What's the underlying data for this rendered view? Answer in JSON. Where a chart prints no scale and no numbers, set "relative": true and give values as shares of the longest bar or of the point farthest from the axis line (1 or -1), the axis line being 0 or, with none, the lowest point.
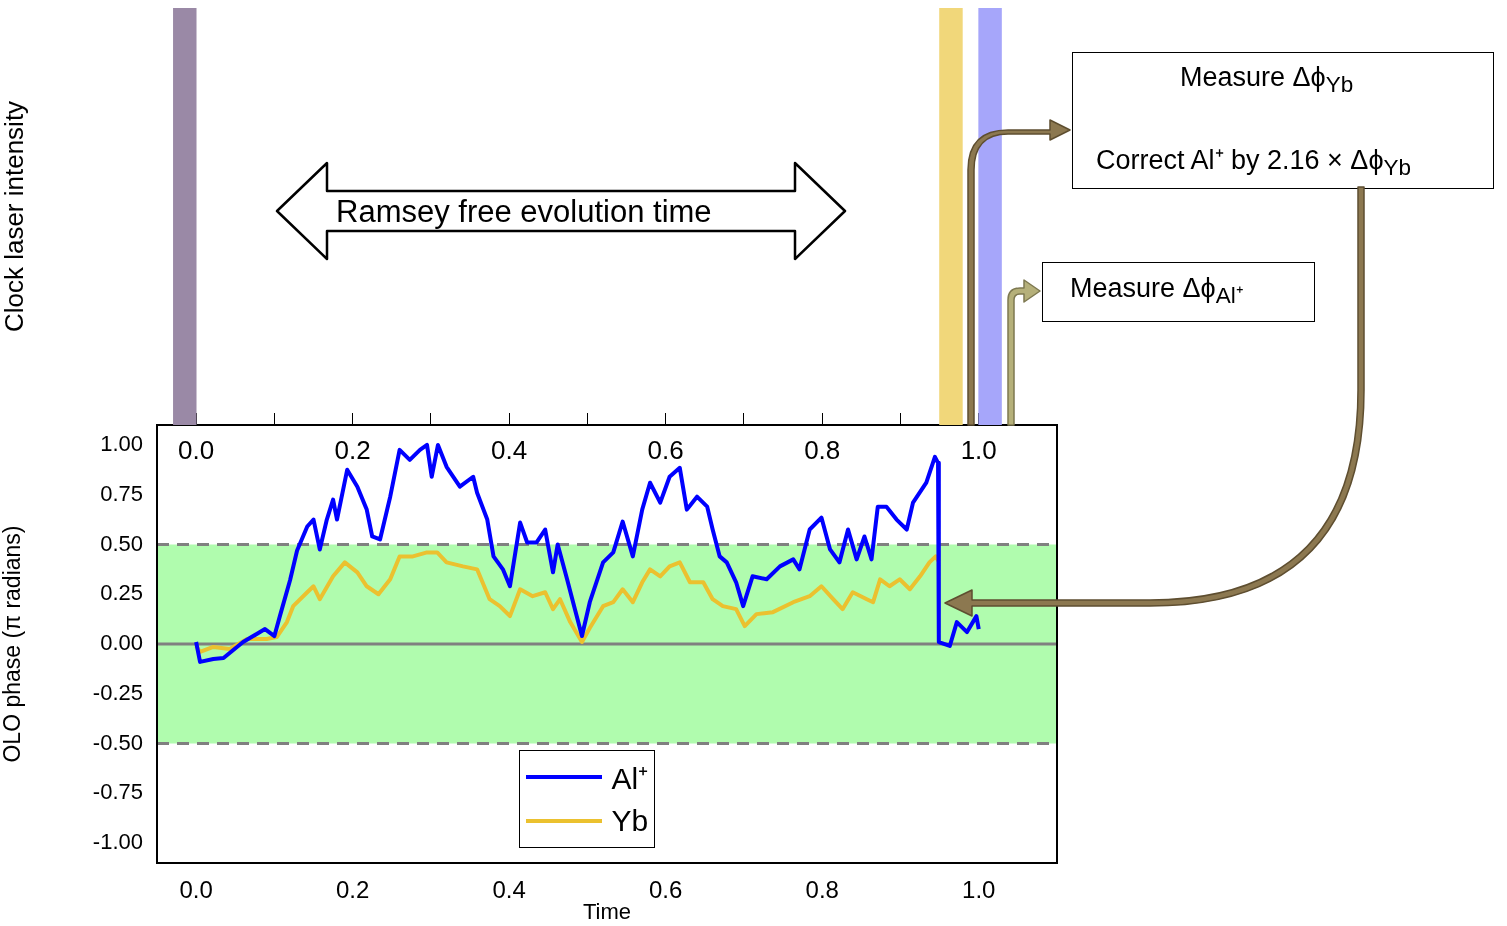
{
  "chart_data": [
    {
      "type": "bar",
      "relative": true,
      "ylabel": "Clock laser intensity",
      "tick_labels": false,
      "x": [
        -0.0145,
        0.9645,
        1.0145
      ],
      "values": [
        1,
        1,
        1
      ],
      "colors": [
        "#9a89a6",
        "#f1d77a",
        "#a6a6fa"
      ],
      "xlim": [
        -0.05,
        1.1
      ],
      "grid": false,
      "legend": false,
      "annotations": [
        "Ramsey free evolution time",
        "Measure Δϕ$_{Yb}$",
        "Correct Al⁺ by 2.16 × Δϕ$_{Yb}$",
        "Measure Δϕ$_{Al⁺}$"
      ]
    },
    {
      "type": "line",
      "xlabel": "Time",
      "ylabel": "OLO phase (π radians)",
      "xlim": [
        -0.05,
        1.1
      ],
      "xticks": [
        {
          "value": 0,
          "label": "0.0"
        },
        {
          "value": 0.1,
          "label": null
        },
        {
          "value": 0.2,
          "label": "0.2"
        },
        {
          "value": 0.3,
          "label": null
        },
        {
          "value": 0.4,
          "label": "0.4"
        },
        {
          "value": 0.5,
          "label": null
        },
        {
          "value": 0.6,
          "label": "0.6"
        },
        {
          "value": 0.7,
          "label": null
        },
        {
          "value": 0.8,
          "label": "0.8"
        },
        {
          "value": 0.9,
          "label": null
        },
        {
          "value": 1,
          "label": "1.0"
        }
      ],
      "x2lim": [
        -0.05,
        1.1
      ],
      "x2ticks": [
        {
          "value": 0,
          "label": "0.0"
        },
        {
          "value": 0.1,
          "label": null
        },
        {
          "value": 0.2,
          "label": "0.2"
        },
        {
          "value": 0.3,
          "label": null
        },
        {
          "value": 0.4,
          "label": "0.4"
        },
        {
          "value": 0.5,
          "label": null
        },
        {
          "value": 0.6,
          "label": "0.6"
        },
        {
          "value": 0.7,
          "label": null
        },
        {
          "value": 0.8,
          "label": "0.8"
        },
        {
          "value": 0.9,
          "label": null
        },
        {
          "value": 1,
          "label": "1.0"
        }
      ],
      "ylim": [
        -1.1,
        1.1
      ],
      "yticks": [
        {
          "value": -1,
          "label": "-1.00"
        },
        {
          "value": -0.75,
          "label": "-0.75"
        },
        {
          "value": -0.5,
          "label": "-0.50"
        },
        {
          "value": -0.25,
          "label": "-0.25"
        },
        {
          "value": 0,
          "label": "0.00"
        },
        {
          "value": 0.25,
          "label": "0.25"
        },
        {
          "value": 0.5,
          "label": "0.50"
        },
        {
          "value": 0.75,
          "label": "0.75"
        },
        {
          "value": 1,
          "label": "1.00"
        }
      ],
      "grid": false,
      "legend": "bottom",
      "marker": "none",
      "line_style": "solid",
      "bands": [
        {
          "axis": "y",
          "from": -0.5,
          "to": 0.5,
          "color": "#b0fcae"
        }
      ],
      "ref_lines": [
        {
          "axis": "y",
          "value": 0.5,
          "color": "#808080",
          "line_style": "dashed"
        },
        {
          "axis": "y",
          "value": -0.5,
          "color": "#808080",
          "line_style": "dashed"
        },
        {
          "axis": "y",
          "value": 0,
          "color": "#808080",
          "line_style": "solid"
        }
      ],
      "series": [
        {
          "name": "Al⁺",
          "color": "#0000ff",
          "x": [
            0.0,
            0.005,
            0.022,
            0.035,
            0.06,
            0.088,
            0.1,
            0.107,
            0.12,
            0.129,
            0.142,
            0.15,
            0.158,
            0.167,
            0.175,
            0.18,
            0.193,
            0.206,
            0.218,
            0.225,
            0.235,
            0.248,
            0.26,
            0.273,
            0.286,
            0.295,
            0.301,
            0.309,
            0.32,
            0.337,
            0.354,
            0.359,
            0.372,
            0.38,
            0.392,
            0.401,
            0.414,
            0.423,
            0.435,
            0.446,
            0.456,
            0.462,
            0.474,
            0.484,
            0.493,
            0.503,
            0.52,
            0.533,
            0.545,
            0.558,
            0.57,
            0.58,
            0.593,
            0.605,
            0.618,
            0.627,
            0.64,
            0.653,
            0.66,
            0.669,
            0.678,
            0.69,
            0.699,
            0.711,
            0.729,
            0.746,
            0.763,
            0.771,
            0.784,
            0.799,
            0.81,
            0.822,
            0.833,
            0.844,
            0.854,
            0.863,
            0.871,
            0.882,
            0.895,
            0.908,
            0.916,
            0.933,
            0.944,
            0.948,
            0.949,
            0.963,
            0.972,
            0.985,
            0.997,
            1.0
          ],
          "values": [
            0.01,
            -0.09,
            -0.075,
            -0.07,
            0.01,
            0.075,
            0.04,
            0.14,
            0.32,
            0.47,
            0.59,
            0.625,
            0.475,
            0.625,
            0.725,
            0.625,
            0.875,
            0.79,
            0.675,
            0.54,
            0.525,
            0.74,
            0.975,
            0.925,
            0.975,
            1.0,
            0.84,
            1.0,
            0.89,
            0.79,
            0.84,
            0.76,
            0.625,
            0.44,
            0.375,
            0.29,
            0.61,
            0.51,
            0.51,
            0.575,
            0.36,
            0.5,
            0.325,
            0.175,
            0.04,
            0.21,
            0.41,
            0.46,
            0.615,
            0.44,
            0.675,
            0.81,
            0.71,
            0.84,
            0.885,
            0.675,
            0.74,
            0.69,
            0.575,
            0.44,
            0.41,
            0.31,
            0.19,
            0.34,
            0.325,
            0.39,
            0.425,
            0.375,
            0.575,
            0.635,
            0.475,
            0.41,
            0.575,
            0.425,
            0.54,
            0.425,
            0.69,
            0.69,
            0.625,
            0.575,
            0.71,
            0.81,
            0.94,
            0.91,
            0.01,
            -0.01,
            0.11,
            0.06,
            0.14,
            0.075
          ]
        },
        {
          "name": "Yb",
          "color": "#ebc12f",
          "x": [
            0.0,
            0.005,
            0.022,
            0.043,
            0.065,
            0.09,
            0.103,
            0.116,
            0.124,
            0.142,
            0.15,
            0.158,
            0.175,
            0.19,
            0.206,
            0.218,
            0.233,
            0.248,
            0.26,
            0.277,
            0.295,
            0.308,
            0.32,
            0.341,
            0.359,
            0.375,
            0.388,
            0.401,
            0.414,
            0.43,
            0.446,
            0.456,
            0.465,
            0.478,
            0.493,
            0.503,
            0.52,
            0.533,
            0.545,
            0.558,
            0.57,
            0.58,
            0.593,
            0.605,
            0.618,
            0.631,
            0.648,
            0.66,
            0.673,
            0.69,
            0.701,
            0.716,
            0.737,
            0.763,
            0.784,
            0.799,
            0.814,
            0.826,
            0.839,
            0.857,
            0.865,
            0.874,
            0.886,
            0.899,
            0.912,
            0.925,
            0.937,
            0.945,
            0.949
          ],
          "values": [
            -0.01,
            -0.04,
            -0.015,
            -0.025,
            0.025,
            0.025,
            0.035,
            0.11,
            0.19,
            0.26,
            0.29,
            0.225,
            0.34,
            0.41,
            0.36,
            0.29,
            0.25,
            0.325,
            0.44,
            0.44,
            0.46,
            0.46,
            0.41,
            0.39,
            0.375,
            0.225,
            0.19,
            0.14,
            0.275,
            0.24,
            0.26,
            0.175,
            0.225,
            0.11,
            0.01,
            0.08,
            0.19,
            0.21,
            0.275,
            0.21,
            0.31,
            0.375,
            0.34,
            0.39,
            0.41,
            0.31,
            0.31,
            0.225,
            0.19,
            0.175,
            0.09,
            0.15,
            0.16,
            0.21,
            0.24,
            0.29,
            0.225,
            0.175,
            0.26,
            0.225,
            0.21,
            0.325,
            0.29,
            0.325,
            0.275,
            0.34,
            0.41,
            0.44,
            0.415
          ]
        }
      ]
    }
  ]
}
